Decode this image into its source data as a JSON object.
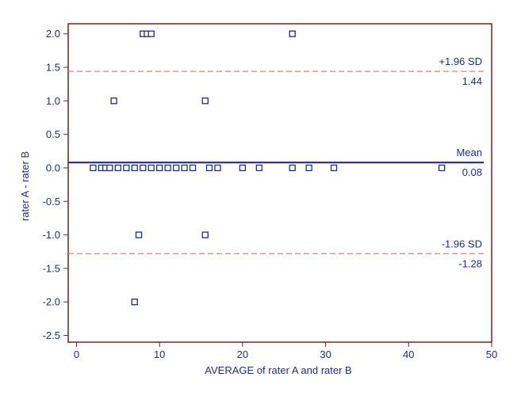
{
  "chart_data": {
    "type": "scatter",
    "plot_kind": "Bland-Altman",
    "xlabel": "AVERAGE of rater A and rater B",
    "ylabel": "rater A - rater B",
    "xlim": [
      -1,
      50
    ],
    "ylim": [
      -2.6,
      2.15
    ],
    "x_ticks": [
      0,
      10,
      20,
      30,
      40,
      50
    ],
    "y_ticks": [
      2.0,
      1.5,
      1.0,
      0.5,
      0.0,
      -0.5,
      -1.0,
      -1.5,
      -2.0,
      -2.5
    ],
    "x_tick_labels": [
      "0",
      "10",
      "20",
      "30",
      "40",
      "50"
    ],
    "y_tick_labels": [
      "2.0",
      "1.5",
      "1.0",
      "0.5",
      "0.0",
      "-0.5",
      "-1.0",
      "-1.5",
      "-2.0",
      "-2.5"
    ],
    "grid": false,
    "points": [
      {
        "x": 8,
        "y": 2
      },
      {
        "x": 8.5,
        "y": 2
      },
      {
        "x": 9,
        "y": 2
      },
      {
        "x": 26,
        "y": 2
      },
      {
        "x": 4.5,
        "y": 1
      },
      {
        "x": 15.5,
        "y": 1
      },
      {
        "x": 2,
        "y": 0
      },
      {
        "x": 3,
        "y": 0
      },
      {
        "x": 3.5,
        "y": 0
      },
      {
        "x": 4,
        "y": 0
      },
      {
        "x": 5,
        "y": 0
      },
      {
        "x": 6,
        "y": 0
      },
      {
        "x": 7,
        "y": 0
      },
      {
        "x": 8,
        "y": 0
      },
      {
        "x": 9,
        "y": 0
      },
      {
        "x": 10,
        "y": 0
      },
      {
        "x": 11,
        "y": 0
      },
      {
        "x": 12,
        "y": 0
      },
      {
        "x": 13,
        "y": 0
      },
      {
        "x": 14,
        "y": 0
      },
      {
        "x": 16,
        "y": 0
      },
      {
        "x": 17,
        "y": 0
      },
      {
        "x": 20,
        "y": 0
      },
      {
        "x": 22,
        "y": 0
      },
      {
        "x": 26,
        "y": 0
      },
      {
        "x": 28,
        "y": 0
      },
      {
        "x": 31,
        "y": 0
      },
      {
        "x": 44,
        "y": 0
      },
      {
        "x": 7.5,
        "y": -1
      },
      {
        "x": 15.5,
        "y": -1
      },
      {
        "x": 7,
        "y": -2
      }
    ],
    "reference_lines": [
      {
        "label": "+1.96 SD",
        "value": 1.44,
        "value_label": "1.44",
        "style": "dashed"
      },
      {
        "label": "Mean",
        "value": 0.08,
        "value_label": "0.08",
        "style": "solid"
      },
      {
        "label": "-1.96 SD",
        "value": -1.28,
        "value_label": "-1.28",
        "style": "dashed"
      }
    ],
    "colors": {
      "frame": "#7a1f1f",
      "text": "#1f2d8a",
      "points": "#1f2d8a",
      "mean_line": "#1f2d8a",
      "sd_lines": "#c98a7a"
    }
  }
}
